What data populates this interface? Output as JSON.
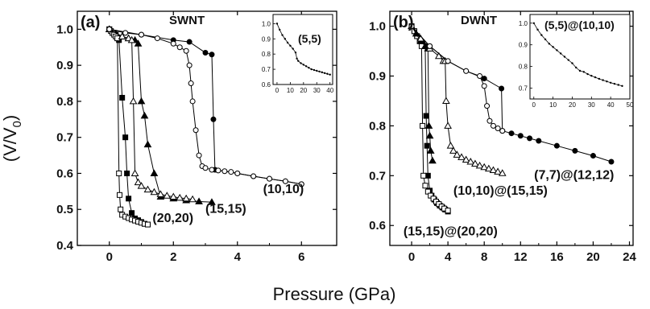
{
  "axes": {
    "xlabel": "Pressure (GPa)",
    "ylabel_main": "(V/V",
    "ylabel_sub": "0",
    "ylabel_tail": ")"
  },
  "panels": [
    {
      "id": "a",
      "label": "(a)",
      "kind": "SWNT",
      "xlim": [
        -1,
        7.1
      ],
      "ylim": [
        0.4,
        1.05
      ],
      "xticks": [
        0,
        2,
        4,
        6
      ],
      "yticks": [
        0.4,
        0.5,
        0.6,
        0.7,
        0.8,
        0.9,
        1.0
      ],
      "ytick_labels": [
        "0.4",
        "0.5",
        "0.6",
        "0.7",
        "0.8",
        "0.9",
        "1.0"
      ],
      "annotations": [
        {
          "text": "(20,20)",
          "x": 1.35,
          "y": 0.465
        },
        {
          "text": "(15,15)",
          "x": 3.0,
          "y": 0.49
        },
        {
          "text": "(10,10)",
          "x": 4.8,
          "y": 0.545
        }
      ],
      "inset": {
        "label": "(5,5)",
        "xlim": [
          -3,
          42
        ],
        "ylim": [
          0.6,
          1.06
        ],
        "xticks": [
          0,
          10,
          20,
          30,
          40
        ],
        "yticks": [
          0.6,
          0.7,
          0.8,
          0.9,
          1.0
        ],
        "ytick_labels": [
          "0.6",
          "0.7",
          "0.8",
          "0.9",
          "1.0"
        ],
        "series": [
          {
            "marker": "dot",
            "x": [
              0,
              2,
              4,
              6,
              8,
              10,
              12,
              14,
              15,
              16,
              18,
              20,
              22,
              24,
              26,
              28,
              30,
              32,
              34,
              36,
              38,
              40
            ],
            "y": [
              1.0,
              0.96,
              0.925,
              0.9,
              0.875,
              0.855,
              0.835,
              0.81,
              0.77,
              0.755,
              0.74,
              0.73,
              0.72,
              0.71,
              0.7,
              0.695,
              0.69,
              0.685,
              0.68,
              0.675,
              0.67,
              0.665
            ]
          }
        ]
      },
      "series": [
        {
          "marker": "filled-square",
          "x": [
            0.0,
            0.1,
            0.15,
            0.2,
            0.25,
            0.3,
            0.4,
            0.5,
            0.55,
            0.6,
            0.7,
            0.8,
            0.9,
            1.0,
            1.1,
            1.2
          ],
          "y": [
            1.0,
            0.99,
            0.99,
            0.985,
            0.975,
            0.97,
            0.81,
            0.7,
            0.6,
            0.53,
            0.49,
            0.475,
            0.47,
            0.465,
            0.46,
            0.458
          ]
        },
        {
          "marker": "open-square",
          "x": [
            0.0,
            0.05,
            0.1,
            0.15,
            0.2,
            0.25,
            0.3,
            0.32,
            0.35,
            0.4,
            0.5,
            0.6,
            0.7,
            0.8,
            0.9,
            1.0,
            1.1,
            1.2
          ],
          "y": [
            1.0,
            0.995,
            0.99,
            0.985,
            0.98,
            0.975,
            0.6,
            0.54,
            0.5,
            0.485,
            0.48,
            0.476,
            0.472,
            0.469,
            0.466,
            0.463,
            0.46,
            0.458
          ]
        },
        {
          "marker": "filled-triangle",
          "x": [
            0.0,
            0.4,
            0.6,
            0.8,
            0.9,
            1.0,
            1.1,
            1.2,
            1.4,
            1.6,
            2.0,
            2.4,
            2.8,
            3.2
          ],
          "y": [
            1.0,
            0.98,
            0.975,
            0.97,
            0.96,
            0.8,
            0.76,
            0.68,
            0.6,
            0.535,
            0.53,
            0.525,
            0.522,
            0.52
          ]
        },
        {
          "marker": "open-triangle",
          "x": [
            0.0,
            0.4,
            0.6,
            0.7,
            0.75,
            0.8,
            0.9,
            1.0,
            1.2,
            1.4,
            1.6,
            1.8,
            2.0,
            2.2,
            2.4,
            2.6
          ],
          "y": [
            1.0,
            0.98,
            0.975,
            0.97,
            0.8,
            0.6,
            0.575,
            0.565,
            0.555,
            0.548,
            0.542,
            0.538,
            0.535,
            0.532,
            0.53,
            0.528
          ]
        },
        {
          "marker": "filled-circle",
          "x": [
            0.0,
            1.0,
            2.0,
            2.5,
            3.0,
            3.2,
            3.25,
            3.3,
            4.0,
            4.5,
            5.0,
            5.5,
            6.0
          ],
          "y": [
            1.0,
            0.985,
            0.97,
            0.965,
            0.935,
            0.93,
            0.75,
            0.61,
            0.6,
            0.592,
            0.585,
            0.578,
            0.57
          ]
        },
        {
          "marker": "open-circle",
          "x": [
            0.0,
            0.5,
            1.0,
            1.5,
            2.0,
            2.2,
            2.4,
            2.5,
            2.55,
            2.6,
            2.7,
            2.8,
            2.9,
            3.0,
            3.2,
            3.4,
            3.6,
            3.8,
            4.0,
            4.5,
            5.0,
            5.5,
            6.0
          ],
          "y": [
            1.0,
            0.99,
            0.985,
            0.975,
            0.96,
            0.95,
            0.94,
            0.9,
            0.85,
            0.8,
            0.72,
            0.65,
            0.62,
            0.615,
            0.61,
            0.608,
            0.606,
            0.604,
            0.6,
            0.592,
            0.585,
            0.578,
            0.57
          ]
        }
      ]
    },
    {
      "id": "b",
      "label": "(b)",
      "kind": "DWNT",
      "xlim": [
        -2.4,
        24.4
      ],
      "ylim": [
        0.56,
        1.03
      ],
      "xticks": [
        0,
        4,
        8,
        12,
        16,
        20,
        24
      ],
      "yticks": [
        0.6,
        0.7,
        0.8,
        0.9,
        1.0
      ],
      "ytick_labels": [
        "0.6",
        "0.7",
        "0.8",
        "0.9",
        "1.0"
      ],
      "annotations": [
        {
          "text": "(15,15)@(20,20)",
          "x": -0.9,
          "y": 0.58
        },
        {
          "text": "(10,10)@(15,15)",
          "x": 4.6,
          "y": 0.662
        },
        {
          "text": "(7,7)@(12,12)",
          "x": 13.5,
          "y": 0.693
        }
      ],
      "inset": {
        "label": "(5,5)@(10,10)",
        "xlim": [
          -2,
          50
        ],
        "ylim": [
          0.65,
          1.04
        ],
        "xticks": [
          0,
          10,
          20,
          30,
          40,
          50
        ],
        "yticks": [
          0.7,
          0.8,
          0.9,
          1.0
        ],
        "ytick_labels": [
          "0.7",
          "0.8",
          "0.9",
          "1.0"
        ],
        "series": [
          {
            "marker": "dot",
            "x": [
              0,
              2,
              4,
              6,
              8,
              10,
              12,
              14,
              16,
              18,
              20,
              22,
              24,
              26,
              28,
              30,
              32,
              34,
              36,
              38,
              40,
              42,
              44,
              46
            ],
            "y": [
              1.0,
              0.97,
              0.945,
              0.925,
              0.905,
              0.89,
              0.875,
              0.86,
              0.845,
              0.83,
              0.815,
              0.795,
              0.78,
              0.775,
              0.765,
              0.757,
              0.75,
              0.743,
              0.737,
              0.731,
              0.725,
              0.72,
              0.715,
              0.71
            ]
          }
        ]
      },
      "series": [
        {
          "marker": "filled-square",
          "x": [
            0.0,
            0.3,
            0.6,
            0.9,
            1.2,
            1.5,
            1.6,
            1.7,
            1.8,
            2.0,
            2.2,
            2.5,
            2.8,
            3.1,
            3.4,
            3.7,
            4.0
          ],
          "y": [
            1.0,
            0.99,
            0.98,
            0.97,
            0.965,
            0.96,
            0.82,
            0.76,
            0.7,
            0.67,
            0.66,
            0.652,
            0.645,
            0.64,
            0.636,
            0.632,
            0.628
          ]
        },
        {
          "marker": "open-square",
          "x": [
            0.0,
            0.3,
            0.6,
            0.9,
            1.1,
            1.2,
            1.3,
            1.5,
            1.8,
            2.1,
            2.4,
            2.7,
            3.0,
            3.3,
            3.6,
            4.0
          ],
          "y": [
            1.0,
            0.99,
            0.98,
            0.97,
            0.96,
            0.8,
            0.7,
            0.68,
            0.668,
            0.66,
            0.654,
            0.648,
            0.643,
            0.638,
            0.634,
            0.63
          ]
        },
        {
          "marker": "filled-triangle",
          "x": [
            0.0,
            0.5,
            1.0,
            1.5,
            1.8,
            1.9,
            2.0,
            2.1,
            2.3
          ],
          "y": [
            1.0,
            0.985,
            0.97,
            0.96,
            0.955,
            0.8,
            0.78,
            0.75,
            0.73
          ]
        },
        {
          "marker": "open-triangle",
          "x": [
            0.0,
            1.0,
            2.0,
            3.0,
            3.5,
            3.7,
            3.8,
            4.0,
            4.3,
            4.6,
            5.0,
            5.5,
            6.0,
            6.5,
            7.0,
            7.5,
            8.0,
            8.5,
            9.0,
            9.5,
            10.0
          ],
          "y": [
            1.0,
            0.975,
            0.955,
            0.94,
            0.93,
            0.93,
            0.85,
            0.8,
            0.76,
            0.75,
            0.742,
            0.737,
            0.732,
            0.728,
            0.724,
            0.72,
            0.717,
            0.714,
            0.711,
            0.708,
            0.705
          ]
        },
        {
          "marker": "filled-circle",
          "x": [
            0.0,
            2.0,
            4.0,
            6.0,
            8.0,
            9.9,
            10.0,
            11.0,
            12.0,
            13.0,
            14.0,
            16.0,
            18.0,
            20.0,
            22.0
          ],
          "y": [
            1.0,
            0.96,
            0.93,
            0.91,
            0.895,
            0.875,
            0.79,
            0.785,
            0.78,
            0.775,
            0.77,
            0.76,
            0.75,
            0.74,
            0.728
          ]
        },
        {
          "marker": "open-circle",
          "x": [
            0.0,
            2.0,
            4.0,
            6.0,
            7.5,
            8.0,
            8.3,
            8.6,
            9.0,
            9.5,
            10.0
          ],
          "y": [
            1.0,
            0.96,
            0.93,
            0.91,
            0.9,
            0.88,
            0.84,
            0.81,
            0.8,
            0.795,
            0.79
          ]
        }
      ]
    }
  ]
}
